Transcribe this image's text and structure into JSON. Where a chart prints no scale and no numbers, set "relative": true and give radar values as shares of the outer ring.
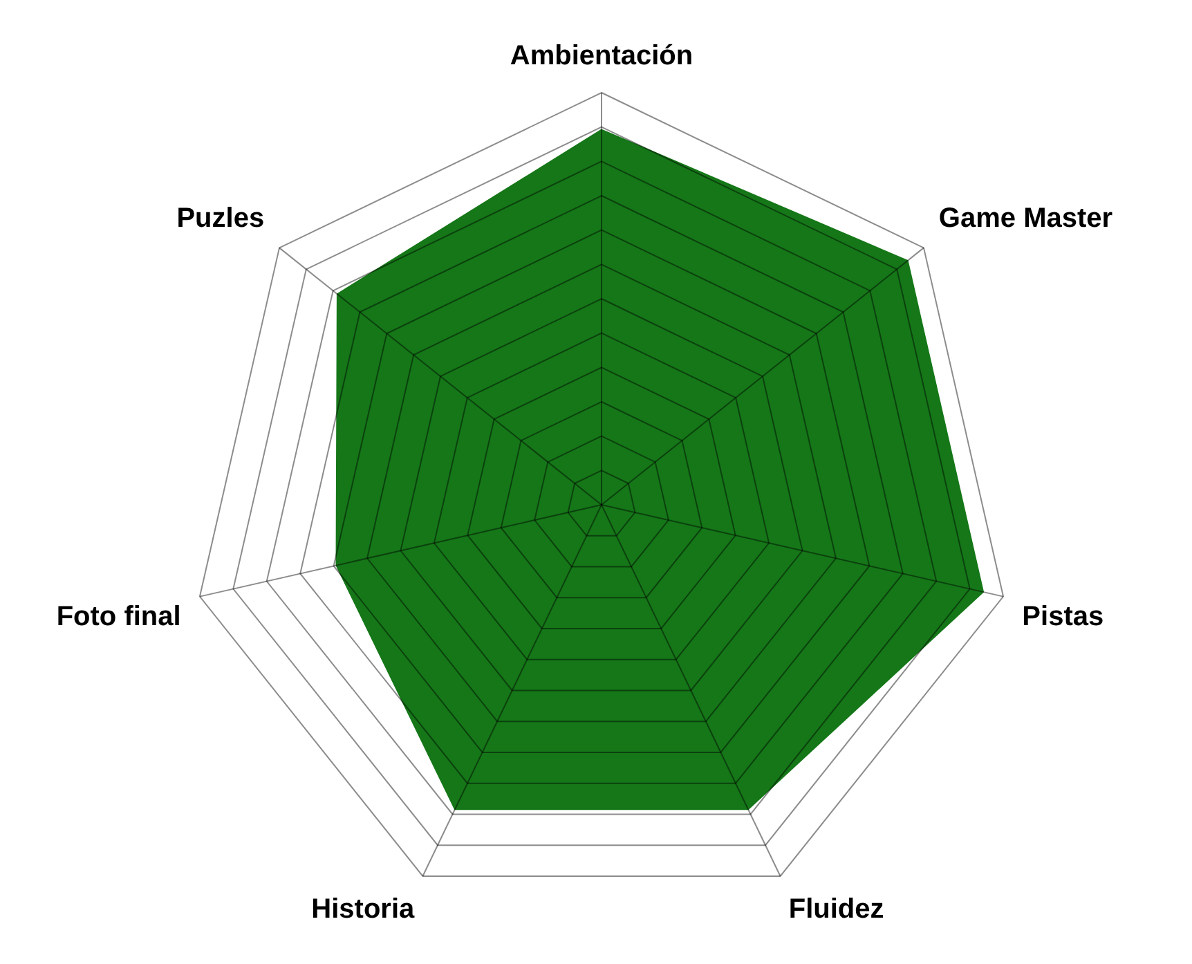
{
  "chart_data": {
    "type": "radar",
    "relative": true,
    "categories": [
      "Ambientación",
      "Game Master",
      "Pistas",
      "Fluidez",
      "Historia",
      "Foto final",
      "Puzles"
    ],
    "series": [
      {
        "color": "#157718",
        "values": [
          0.91,
          0.95,
          0.95,
          0.82,
          0.82,
          0.66,
          0.82
        ]
      }
    ]
  }
}
